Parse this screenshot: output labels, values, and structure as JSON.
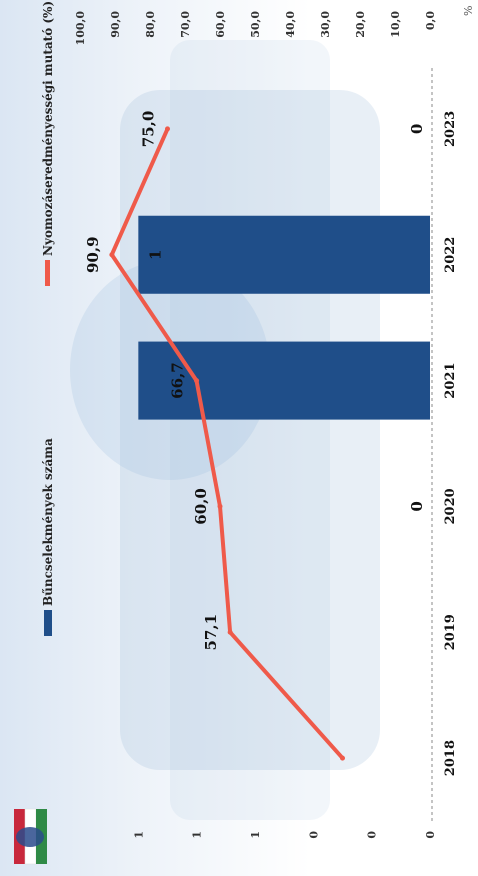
{
  "chart_data": {
    "type": "bar+line",
    "orientation": "rotated-90",
    "categories": [
      "2018",
      "2019",
      "2020",
      "2021",
      "2022",
      "2023"
    ],
    "legend": [
      "Bűncselekmények száma",
      "Nyomozáseredményességi mutató (%)"
    ],
    "series": [
      {
        "name": "Bűncselekmények száma",
        "type": "bar",
        "axis": "left",
        "color": "#1f4e89",
        "values": [
          0,
          0,
          0,
          1,
          1,
          0
        ],
        "labels": [
          "",
          "",
          "0",
          "",
          "1",
          "0"
        ]
      },
      {
        "name": "Nyomozáseredményességi mutató (%)",
        "type": "line",
        "axis": "right",
        "color": "#ef5a4a",
        "values": [
          25,
          57.1,
          60.0,
          66.7,
          90.9,
          75.0
        ],
        "labels": [
          "",
          "57,1",
          "60,0",
          "66,7",
          "90,9",
          "75,0"
        ]
      }
    ],
    "left_axis": {
      "ylim": [
        0,
        1.2
      ],
      "ticks": [
        "0",
        "0",
        "0",
        "1",
        "1",
        "1"
      ]
    },
    "right_axis": {
      "ylim": [
        0,
        100
      ],
      "unit": "%",
      "ticks": [
        "0,0",
        "10,0",
        "20,0",
        "30,0",
        "40,0",
        "50,0",
        "60,0",
        "70,0",
        "80,0",
        "90,0",
        "100,0"
      ]
    },
    "legend_position": "top"
  },
  "colors": {
    "bar": "#1f4e89",
    "line": "#ef5a4a"
  }
}
